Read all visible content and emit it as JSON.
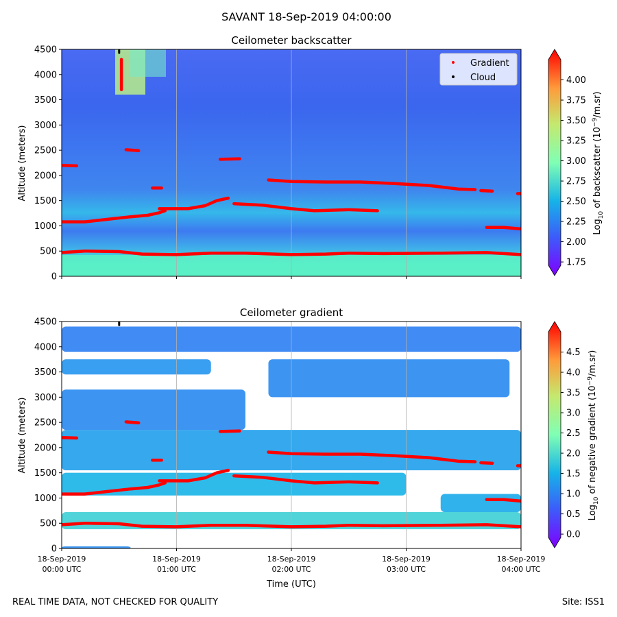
{
  "suptitle": "SAVANT 18-Sep-2019 04:00:00",
  "footer": {
    "left": "REAL TIME DATA, NOT CHECKED FOR QUALITY",
    "right": "Site: ISS1"
  },
  "colors": {
    "background_top": "#3e6cf0",
    "haze": "#35c7e8",
    "surface": "#62f3c0",
    "gradient_line": "#ff0000",
    "cloud_point": "#000000"
  },
  "chart_data": [
    {
      "type": "heatmap",
      "title": "Ceilometer backscatter",
      "xlabel": "",
      "ylabel": "Altitude (meters)",
      "xlim": [
        0,
        4
      ],
      "ylim": [
        0,
        4500
      ],
      "yticks": [
        0,
        500,
        1000,
        1500,
        2000,
        2500,
        3000,
        3500,
        4000,
        4500
      ],
      "xticks": [
        0,
        1,
        2,
        3,
        4
      ],
      "xtick_labels": [],
      "grid": "vertical",
      "legend": {
        "placement": "top-right",
        "entries": [
          {
            "label": "Gradient",
            "color": "#ff0000"
          },
          {
            "label": "Cloud",
            "color": "#000000"
          }
        ]
      },
      "colorbar": {
        "label": "Log10 of backscatter (10^-9/m.sr)",
        "label_main": "Log",
        "label_sub": "10",
        "label_mid": " of backscatter (10",
        "label_sup": "−9",
        "label_end": "/m.sr)",
        "min": 1.7,
        "max": 4.25,
        "ticks": [
          "1.75",
          "2.00",
          "2.25",
          "2.50",
          "2.75",
          "3.00",
          "3.25",
          "3.50",
          "3.75",
          "4.00"
        ],
        "tick_values": [
          1.75,
          2.0,
          2.25,
          2.5,
          2.75,
          3.0,
          3.25,
          3.5,
          3.75,
          4.0
        ]
      },
      "series": [
        {
          "name": "Gradient",
          "values": [
            [
              0,
              470
            ],
            [
              0.2,
              500
            ],
            [
              0.5,
              490
            ],
            [
              0.7,
              440
            ],
            [
              1.0,
              430
            ],
            [
              1.3,
              460
            ],
            [
              1.6,
              460
            ],
            [
              2.0,
              430
            ],
            [
              2.3,
              440
            ],
            [
              2.5,
              460
            ],
            [
              2.8,
              450
            ],
            [
              3.3,
              460
            ],
            [
              3.7,
              470
            ],
            [
              4.0,
              430
            ]
          ]
        },
        {
          "name": "Gradient",
          "values": [
            [
              0,
              1080
            ],
            [
              0.2,
              1080
            ],
            [
              0.4,
              1130
            ],
            [
              0.6,
              1180
            ],
            [
              0.75,
              1210
            ],
            [
              0.85,
              1260
            ],
            [
              0.9,
              1300
            ]
          ]
        },
        {
          "name": "Gradient",
          "values": [
            [
              0.85,
              1340
            ],
            [
              1.1,
              1340
            ],
            [
              1.25,
              1400
            ],
            [
              1.35,
              1500
            ],
            [
              1.45,
              1550
            ]
          ]
        },
        {
          "name": "Gradient",
          "values": [
            [
              1.5,
              1440
            ],
            [
              1.75,
              1410
            ],
            [
              2.0,
              1340
            ],
            [
              2.2,
              1300
            ],
            [
              2.5,
              1320
            ],
            [
              2.75,
              1300
            ]
          ]
        },
        {
          "name": "Gradient",
          "values": [
            [
              1.8,
              1910
            ],
            [
              2.0,
              1880
            ],
            [
              2.3,
              1870
            ],
            [
              2.6,
              1870
            ],
            [
              2.9,
              1840
            ],
            [
              3.2,
              1800
            ],
            [
              3.45,
              1730
            ],
            [
              3.6,
              1720
            ]
          ]
        },
        {
          "name": "Gradient",
          "values": [
            [
              3.65,
              1700
            ],
            [
              3.75,
              1690
            ]
          ]
        },
        {
          "name": "Gradient",
          "values": [
            [
              3.7,
              970
            ],
            [
              3.85,
              970
            ],
            [
              4.0,
              940
            ]
          ]
        },
        {
          "name": "Gradient",
          "values": [
            [
              3.97,
              1640
            ],
            [
              4.0,
              1640
            ]
          ]
        },
        {
          "name": "Gradient",
          "values": [
            [
              0,
              2200
            ],
            [
              0.13,
              2190
            ]
          ]
        },
        {
          "name": "Gradient",
          "values": [
            [
              0.56,
              2510
            ],
            [
              0.67,
              2490
            ]
          ]
        },
        {
          "name": "Gradient",
          "values": [
            [
              0.79,
              1750
            ],
            [
              0.87,
              1750
            ]
          ]
        },
        {
          "name": "Gradient",
          "values": [
            [
              1.38,
              2320
            ],
            [
              1.55,
              2330
            ]
          ]
        },
        {
          "name": "Gradient",
          "values": [
            [
              0.52,
              3700
            ],
            [
              0.52,
              4300
            ]
          ]
        },
        {
          "name": "Cloud",
          "values": [
            [
              0.5,
              4500
            ],
            [
              0.5,
              4430
            ]
          ]
        }
      ]
    },
    {
      "type": "heatmap",
      "title": "Ceilometer gradient",
      "xlabel": "Time (UTC)",
      "ylabel": "Altitude (meters)",
      "xlim": [
        0,
        4
      ],
      "ylim": [
        0,
        4500
      ],
      "yticks": [
        0,
        500,
        1000,
        1500,
        2000,
        2500,
        3000,
        3500,
        4000,
        4500
      ],
      "xticks": [
        0,
        1,
        2,
        3,
        4
      ],
      "xtick_labels": [
        {
          "date": "18-Sep-2019",
          "time": "00:00 UTC"
        },
        {
          "date": "18-Sep-2019",
          "time": "01:00 UTC"
        },
        {
          "date": "18-Sep-2019",
          "time": "02:00 UTC"
        },
        {
          "date": "18-Sep-2019",
          "time": "03:00 UTC"
        },
        {
          "date": "18-Sep-2019",
          "time": "04:00 UTC"
        }
      ],
      "grid": "vertical",
      "colorbar": {
        "label": "Log10 of negative gradient (10^-9/m.sr)",
        "label_main": "Log",
        "label_sub": "10",
        "label_mid": " of negative gradient (10",
        "label_sup": "−9",
        "label_end": "/m.sr)",
        "min": -0.1,
        "max": 5.0,
        "ticks": [
          "0.0",
          "0.5",
          "1.0",
          "1.5",
          "2.0",
          "2.5",
          "3.0",
          "3.5",
          "4.0",
          "4.5"
        ],
        "tick_values": [
          0.0,
          0.5,
          1.0,
          1.5,
          2.0,
          2.5,
          3.0,
          3.5,
          4.0,
          4.5
        ]
      },
      "bands": [
        {
          "x0": 0.0,
          "x1": 4.0,
          "y0": 380,
          "y1": 720,
          "value": 1.9
        },
        {
          "x0": 0.0,
          "x1": 3.0,
          "y0": 1050,
          "y1": 1500,
          "value": 1.6
        },
        {
          "x0": 0.0,
          "x1": 4.0,
          "y0": 1550,
          "y1": 2350,
          "value": 1.4
        },
        {
          "x0": 0.0,
          "x1": 1.6,
          "y0": 2350,
          "y1": 3150,
          "value": 1.2
        },
        {
          "x0": 1.8,
          "x1": 3.9,
          "y0": 3000,
          "y1": 3750,
          "value": 1.2
        },
        {
          "x0": 0.0,
          "x1": 1.3,
          "y0": 3450,
          "y1": 3750,
          "value": 1.3
        },
        {
          "x0": 0.0,
          "x1": 4.0,
          "y0": 3900,
          "y1": 4400,
          "value": 1.1
        },
        {
          "x0": 3.3,
          "x1": 4.0,
          "y0": 720,
          "y1": 1080,
          "value": 1.5
        },
        {
          "x0": 0.0,
          "x1": 0.6,
          "y0": 0,
          "y1": 40,
          "value": 1.2
        }
      ],
      "series": [
        {
          "name": "Gradient",
          "values": [
            [
              0,
              470
            ],
            [
              0.2,
              500
            ],
            [
              0.5,
              490
            ],
            [
              0.7,
              440
            ],
            [
              1.0,
              430
            ],
            [
              1.3,
              460
            ],
            [
              1.6,
              460
            ],
            [
              2.0,
              430
            ],
            [
              2.3,
              440
            ],
            [
              2.5,
              460
            ],
            [
              2.8,
              450
            ],
            [
              3.3,
              460
            ],
            [
              3.7,
              470
            ],
            [
              4.0,
              430
            ]
          ]
        },
        {
          "name": "Gradient",
          "values": [
            [
              0,
              1080
            ],
            [
              0.2,
              1080
            ],
            [
              0.4,
              1130
            ],
            [
              0.6,
              1180
            ],
            [
              0.75,
              1210
            ],
            [
              0.85,
              1260
            ],
            [
              0.9,
              1300
            ]
          ]
        },
        {
          "name": "Gradient",
          "values": [
            [
              0.85,
              1340
            ],
            [
              1.1,
              1340
            ],
            [
              1.25,
              1400
            ],
            [
              1.35,
              1500
            ],
            [
              1.45,
              1550
            ]
          ]
        },
        {
          "name": "Gradient",
          "values": [
            [
              1.5,
              1440
            ],
            [
              1.75,
              1410
            ],
            [
              2.0,
              1340
            ],
            [
              2.2,
              1300
            ],
            [
              2.5,
              1320
            ],
            [
              2.75,
              1300
            ]
          ]
        },
        {
          "name": "Gradient",
          "values": [
            [
              1.8,
              1910
            ],
            [
              2.0,
              1880
            ],
            [
              2.3,
              1870
            ],
            [
              2.6,
              1870
            ],
            [
              2.9,
              1840
            ],
            [
              3.2,
              1800
            ],
            [
              3.45,
              1730
            ],
            [
              3.6,
              1720
            ]
          ]
        },
        {
          "name": "Gradient",
          "values": [
            [
              3.65,
              1700
            ],
            [
              3.75,
              1690
            ]
          ]
        },
        {
          "name": "Gradient",
          "values": [
            [
              3.7,
              970
            ],
            [
              3.85,
              970
            ],
            [
              4.0,
              940
            ]
          ]
        },
        {
          "name": "Gradient",
          "values": [
            [
              3.97,
              1640
            ],
            [
              4.0,
              1640
            ]
          ]
        },
        {
          "name": "Gradient",
          "values": [
            [
              0,
              2200
            ],
            [
              0.13,
              2190
            ]
          ]
        },
        {
          "name": "Gradient",
          "values": [
            [
              0.56,
              2510
            ],
            [
              0.67,
              2490
            ]
          ]
        },
        {
          "name": "Gradient",
          "values": [
            [
              0.79,
              1750
            ],
            [
              0.87,
              1750
            ]
          ]
        },
        {
          "name": "Gradient",
          "values": [
            [
              1.38,
              2320
            ],
            [
              1.55,
              2330
            ]
          ]
        },
        {
          "name": "Cloud",
          "values": [
            [
              0.5,
              4500
            ],
            [
              0.5,
              4430
            ]
          ]
        }
      ]
    }
  ]
}
